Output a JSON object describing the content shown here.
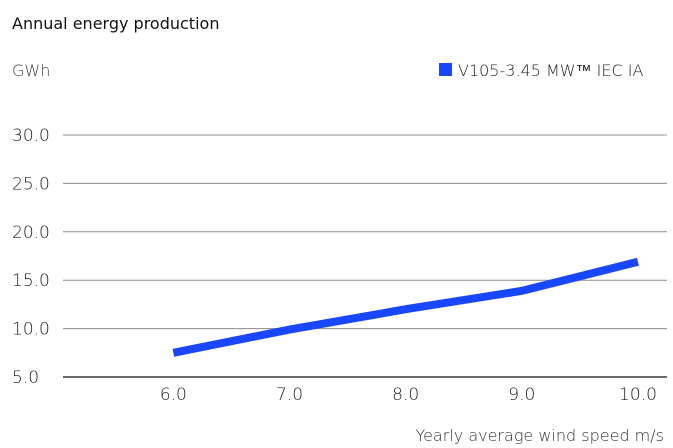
{
  "chart_data": {
    "type": "line",
    "title": "Annual energy production",
    "ylabel": "GWh",
    "xlabel": "Yearly average wind speed m/s",
    "x": [
      6.0,
      7.0,
      8.0,
      9.0,
      10.0
    ],
    "x_ticks": [
      "6.0",
      "7.0",
      "8.0",
      "9.0",
      "10.0"
    ],
    "y_ticks": [
      "5.0",
      "10.0",
      "15.0",
      "20.0",
      "25.0",
      "30.0"
    ],
    "xlim": [
      5.05,
      10.25
    ],
    "ylim": [
      5.0,
      30.0
    ],
    "grid": true,
    "legend_position": "top-right",
    "series": [
      {
        "name": "V105-3.45 MW™ IEC IA",
        "color": "#1947ff",
        "values": [
          7.5,
          9.9,
          12.0,
          13.9,
          16.9
        ]
      }
    ]
  }
}
